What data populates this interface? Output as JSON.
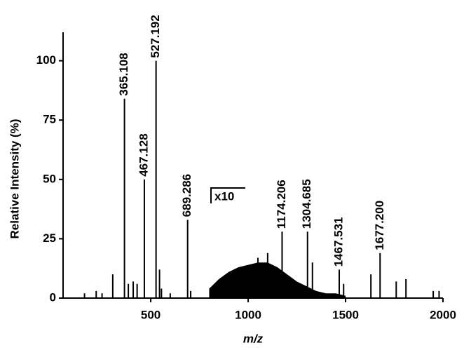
{
  "chart_data": {
    "type": "stem",
    "x_label": "m/z",
    "y_label": "Relative Intensity (%)",
    "annotation": "x10",
    "xlim": [
      50,
      2000
    ],
    "xticks": [
      500,
      1000,
      1500,
      2000
    ],
    "ylim": [
      0,
      112
    ],
    "yticks": [
      0,
      25,
      50,
      75,
      100
    ],
    "color": "#000000",
    "labeled_peaks": {
      "x": [
        365.108,
        467.128,
        527.192,
        689.286,
        1174.206,
        1304.685,
        1467.531,
        1677.2
      ],
      "values": [
        84,
        50,
        100,
        33,
        28,
        28,
        12,
        19
      ],
      "x_labels": [
        "365.108",
        "467.128",
        "527.192",
        "689.286",
        "1174.206",
        "1304.685",
        "1467.531",
        "1677.200"
      ]
    },
    "peaks": {
      "x": [
        160,
        220,
        250,
        305,
        385,
        410,
        430,
        545,
        555,
        600,
        705,
        1050,
        1100,
        1330,
        1490,
        1630,
        1760,
        1810,
        1950,
        1980
      ],
      "values": [
        2,
        3,
        2,
        10,
        6,
        7,
        6,
        12,
        4,
        2,
        3,
        17,
        19,
        15,
        6,
        10,
        7,
        8,
        3,
        3
      ]
    },
    "envelope": {
      "x": [
        800,
        850,
        900,
        950,
        1000,
        1050,
        1100,
        1150,
        1200,
        1250,
        1300,
        1350,
        1400,
        1450,
        1500
      ],
      "values": [
        4,
        8,
        11,
        13,
        14,
        15,
        15,
        13,
        10,
        7,
        5,
        3,
        2,
        2,
        1
      ]
    }
  }
}
